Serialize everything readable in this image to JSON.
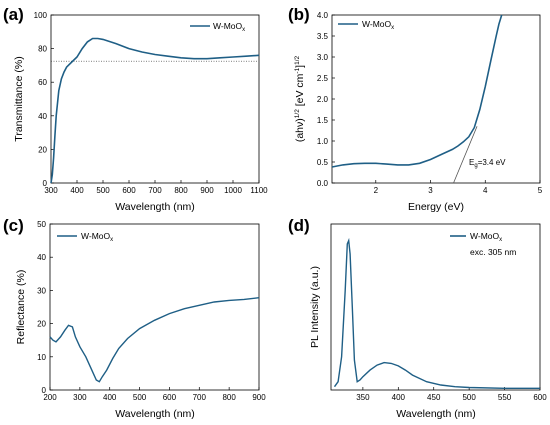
{
  "line_color": "#1f5f86",
  "chart_data": [
    {
      "panel": "(a)",
      "type": "line",
      "xlabel": "Wavelength (nm)",
      "ylabel": "Transmittance (%)",
      "xlim": [
        300,
        1100
      ],
      "ylim": [
        0,
        100
      ],
      "xticks": [
        300,
        400,
        500,
        600,
        700,
        800,
        900,
        1000,
        1100
      ],
      "yticks": [
        0,
        20,
        40,
        60,
        80,
        100
      ],
      "legend": {
        "base": "W-MoO",
        "sub": "x",
        "placement": "top-right"
      },
      "reference_line": {
        "y": 72.5,
        "style": "dotted"
      },
      "series": [
        {
          "name": "W-MoOx",
          "x": [
            300,
            305,
            310,
            315,
            320,
            330,
            340,
            350,
            360,
            380,
            400,
            420,
            440,
            460,
            480,
            500,
            550,
            600,
            650,
            700,
            750,
            800,
            850,
            900,
            950,
            1000,
            1050,
            1100
          ],
          "y": [
            0,
            5,
            15,
            28,
            40,
            55,
            62,
            66,
            69,
            72,
            75,
            80,
            84,
            86,
            86,
            85.5,
            83,
            80,
            78,
            76.5,
            75.5,
            74.5,
            74,
            74,
            74.5,
            75,
            75.5,
            76
          ]
        }
      ]
    },
    {
      "panel": "(b)",
      "type": "line",
      "xlabel": "Energy (eV)",
      "ylabel_main": "(ahν)",
      "ylabel_sup1": "1/2",
      "ylabel_mid": " [eV cm",
      "ylabel_sup2": "-1",
      "ylabel_end": "]",
      "ylabel_sup3": "1/2",
      "xlim": [
        1.2,
        5
      ],
      "ylim": [
        0,
        4
      ],
      "xticks": [
        2,
        3,
        4,
        5
      ],
      "yticks": [
        0.0,
        0.5,
        1.0,
        1.5,
        2.0,
        2.5,
        3.0,
        3.5,
        4.0
      ],
      "legend": {
        "base": "W-MoO",
        "sub": "x",
        "placement": "top-left"
      },
      "annotation": {
        "base": "E",
        "sub": "g",
        "rest": "=3.4 eV"
      },
      "tangent": {
        "x": [
          3.42,
          3.85
        ],
        "y": [
          0,
          1.35
        ]
      },
      "series": [
        {
          "name": "W-MoOx",
          "x": [
            1.2,
            1.4,
            1.6,
            1.8,
            2.0,
            2.2,
            2.4,
            2.6,
            2.8,
            3.0,
            3.2,
            3.4,
            3.5,
            3.6,
            3.7,
            3.8,
            3.9,
            4.0,
            4.1,
            4.2,
            4.25,
            4.3
          ],
          "y": [
            0.38,
            0.43,
            0.46,
            0.47,
            0.47,
            0.45,
            0.43,
            0.43,
            0.47,
            0.56,
            0.68,
            0.8,
            0.88,
            0.98,
            1.1,
            1.32,
            1.75,
            2.3,
            2.9,
            3.5,
            3.78,
            4.0
          ]
        }
      ]
    },
    {
      "panel": "(c)",
      "type": "line",
      "xlabel": "Wavelength (nm)",
      "ylabel": "Reflectance (%)",
      "xlim": [
        200,
        900
      ],
      "ylim": [
        0,
        50
      ],
      "xticks": [
        200,
        300,
        400,
        500,
        600,
        700,
        800,
        900
      ],
      "yticks": [
        0,
        10,
        20,
        30,
        40,
        50
      ],
      "legend": {
        "base": "W-MoO",
        "sub": "x",
        "placement": "top-left"
      },
      "series": [
        {
          "name": "W-MoOx",
          "x": [
            200,
            210,
            220,
            235,
            250,
            262,
            275,
            285,
            300,
            320,
            340,
            355,
            365,
            375,
            390,
            410,
            430,
            460,
            500,
            550,
            600,
            650,
            700,
            750,
            800,
            850,
            900
          ],
          "y": [
            16,
            15,
            14.5,
            16,
            18,
            19.5,
            19,
            16,
            13,
            10,
            6,
            3,
            2.5,
            4,
            6,
            9.5,
            12.5,
            15.5,
            18.5,
            21,
            23,
            24.5,
            25.5,
            26.5,
            27,
            27.3,
            27.8
          ]
        }
      ]
    },
    {
      "panel": "(d)",
      "type": "line",
      "xlabel": "Wavelength (nm)",
      "ylabel": "PL Intensity (a.u.)",
      "xlim": [
        305,
        600
      ],
      "ylim": [
        0,
        1
      ],
      "xticks": [
        350,
        400,
        450,
        500,
        550,
        600
      ],
      "legend": {
        "base": "W-MoO",
        "sub": "x",
        "placement": "top-right",
        "extra": "exc. 305 nm"
      },
      "series": [
        {
          "name": "W-MoOx",
          "x": [
            310,
            315,
            320,
            325,
            328,
            330,
            332,
            335,
            338,
            342,
            346,
            350,
            360,
            370,
            380,
            390,
            400,
            410,
            420,
            440,
            460,
            480,
            500,
            550,
            600
          ],
          "y": [
            0.02,
            0.05,
            0.2,
            0.6,
            0.88,
            0.9,
            0.82,
            0.5,
            0.18,
            0.05,
            0.06,
            0.08,
            0.12,
            0.15,
            0.165,
            0.16,
            0.145,
            0.12,
            0.09,
            0.05,
            0.03,
            0.02,
            0.015,
            0.01,
            0.01
          ]
        }
      ]
    }
  ]
}
